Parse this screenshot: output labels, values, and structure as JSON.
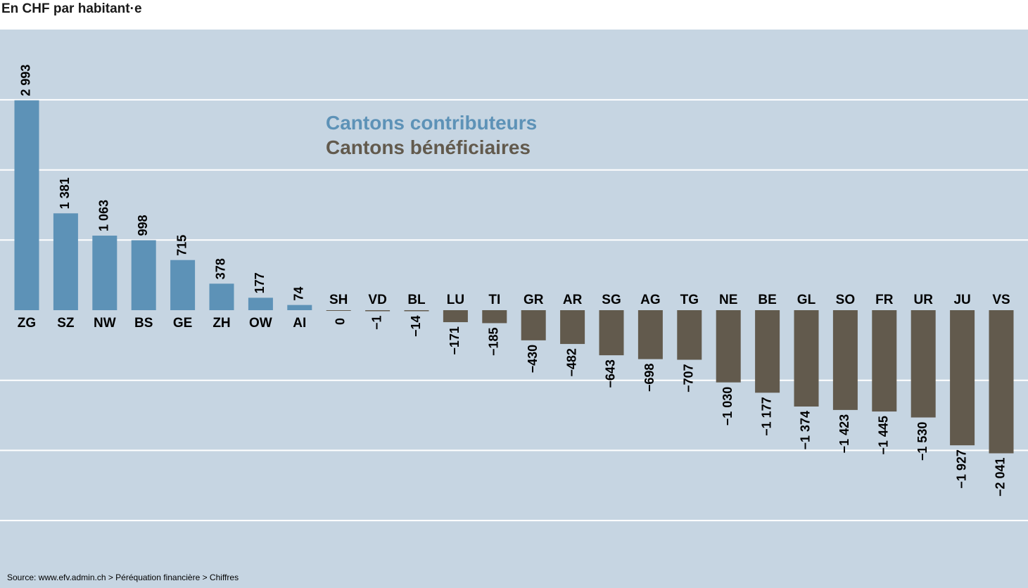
{
  "header": {
    "unit_label": "En CHF par habitant·e"
  },
  "source": "Source: www.efv.admin.ch > Péréquation financière > Chiffres",
  "colors": {
    "background": "#c6d5e2",
    "gridline": "#ffffff",
    "contributor": "#5d92b7",
    "beneficiary": "#625a4d"
  },
  "chart_data": {
    "type": "bar",
    "title": "",
    "xlabel": "",
    "ylabel": "",
    "ylim": [
      -2500,
      4000
    ],
    "grid": true,
    "legend_position": "top-center",
    "legend": [
      {
        "name": "Cantons contributeurs",
        "color": "#5d92b7"
      },
      {
        "name": "Cantons bénéficiaires",
        "color": "#625a4d"
      }
    ],
    "categories": [
      "ZG",
      "SZ",
      "NW",
      "BS",
      "GE",
      "ZH",
      "OW",
      "AI",
      "SH",
      "VD",
      "BL",
      "LU",
      "TI",
      "GR",
      "AR",
      "SG",
      "AG",
      "TG",
      "NE",
      "BE",
      "GL",
      "SO",
      "FR",
      "UR",
      "JU",
      "VS"
    ],
    "values": [
      2993,
      1381,
      1063,
      998,
      715,
      378,
      177,
      74,
      0,
      -1,
      -14,
      -171,
      -185,
      -430,
      -482,
      -643,
      -698,
      -707,
      -1030,
      -1177,
      -1374,
      -1423,
      -1445,
      -1530,
      -1927,
      -2041
    ],
    "value_labels": [
      "2 993",
      "1 381",
      "1 063",
      "998",
      "715",
      "378",
      "177",
      "74",
      "0",
      "−1",
      "−14",
      "−171",
      "−185",
      "−430",
      "−482",
      "−643",
      "−698",
      "−707",
      "−1 030",
      "−1 177",
      "−1 374",
      "−1 423",
      "−1 445",
      "−1 530",
      "−1 927",
      "−2 041"
    ]
  }
}
